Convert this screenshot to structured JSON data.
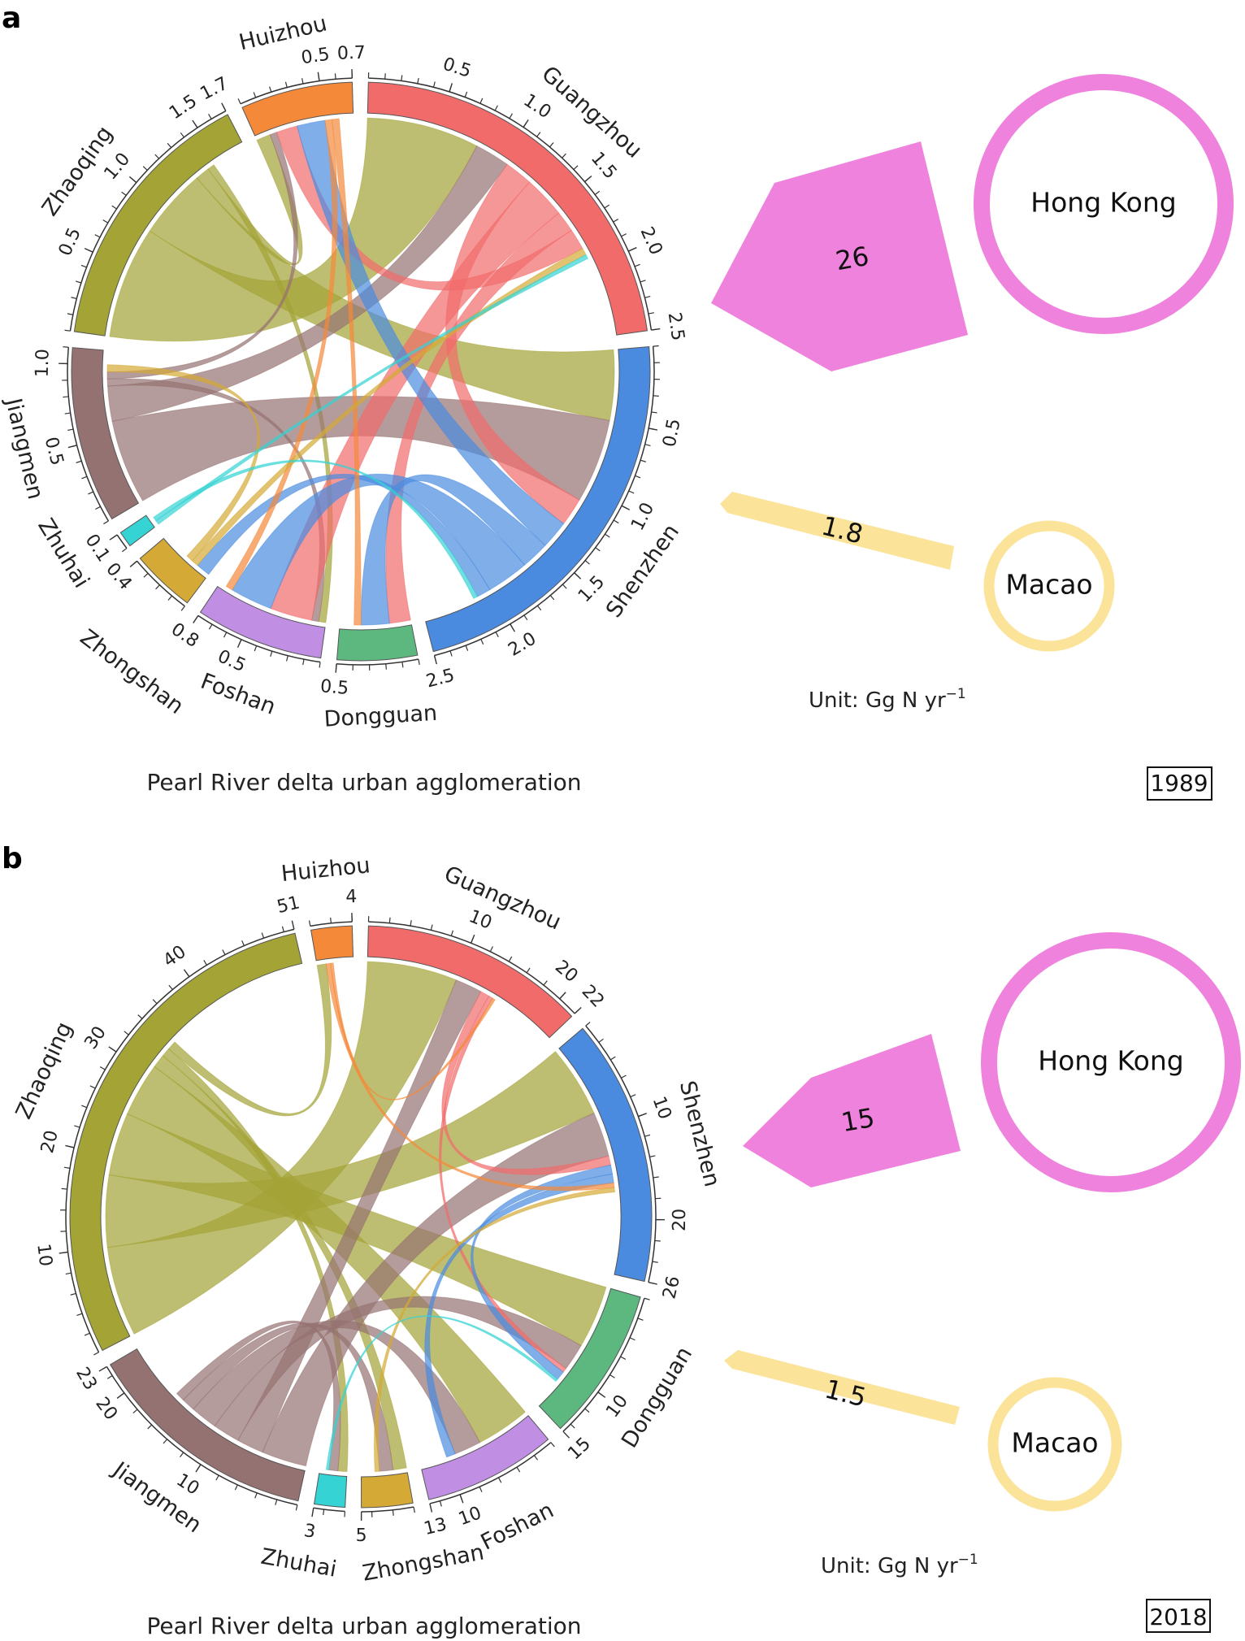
{
  "colors": {
    "Guangzhou": "#f26b6b",
    "Shenzhen": "#4a8be0",
    "Dongguan": "#5cb87f",
    "Foshan": "#c08fe4",
    "Zhongshan": "#d4a935",
    "Zhuhai": "#35d3d3",
    "Jiangmen": "#957272",
    "Zhaoqing": "#a3a336",
    "Huizhou": "#f5893a",
    "Hong Kong": "#ef82dc",
    "Macao": "#fbe39a"
  },
  "chart_data": [
    {
      "type": "chord",
      "panel": "a",
      "year": "1989",
      "caption": "Pearl River delta urban agglomeration",
      "unit_prefix": "Unit: Gg N yr",
      "unit_sup": "−1",
      "segments": [
        {
          "name": "Guangzhou",
          "total": 2.5,
          "ticks": [
            0.5,
            1.0,
            1.5,
            2.0,
            2.5
          ],
          "tick_labels": [
            "0.5",
            "1.0",
            "1.5",
            "2.0",
            "2.5"
          ]
        },
        {
          "name": "Shenzhen",
          "total": 2.5,
          "ticks": [
            0.5,
            1.0,
            1.5,
            2.0,
            2.5
          ],
          "tick_labels": [
            "0.5",
            "1.0",
            "1.5",
            "2.0",
            "2.5"
          ]
        },
        {
          "name": "Dongguan",
          "total": 0.5,
          "ticks": [
            0.5
          ],
          "tick_labels": [
            "0.5"
          ]
        },
        {
          "name": "Foshan",
          "total": 0.8,
          "ticks": [
            0.5,
            0.8
          ],
          "tick_labels": [
            "0.5",
            "0.8"
          ]
        },
        {
          "name": "Zhongshan",
          "total": 0.4,
          "ticks": [
            0.4
          ],
          "tick_labels": [
            "0.4"
          ]
        },
        {
          "name": "Zhuhai",
          "total": 0.1,
          "ticks": [
            0.1
          ],
          "tick_labels": [
            "0.1"
          ]
        },
        {
          "name": "Jiangmen",
          "total": 1.1,
          "ticks": [
            0.5,
            1.0
          ],
          "tick_labels": [
            "0.5",
            "1.0"
          ]
        },
        {
          "name": "Zhaoqing",
          "total": 1.7,
          "ticks": [
            0.5,
            1.0,
            1.5,
            1.7
          ],
          "tick_labels": [
            "0.5",
            "1.0",
            "1.5",
            "1.7"
          ]
        },
        {
          "name": "Huizhou",
          "total": 0.7,
          "ticks": [
            0.5,
            0.7
          ],
          "tick_labels": [
            "0.5",
            "0.7"
          ]
        }
      ],
      "tick_step": 0.1,
      "flows": [
        [
          "Zhaoqing",
          "Guangzhou",
          0.8
        ],
        [
          "Zhaoqing",
          "Shenzhen",
          0.5
        ],
        [
          "Zhaoqing",
          "Huizhou",
          0.1
        ],
        [
          "Zhaoqing",
          "Foshan",
          0.05
        ],
        [
          "Jiangmen",
          "Shenzhen",
          0.6
        ],
        [
          "Jiangmen",
          "Guangzhou",
          0.25
        ],
        [
          "Jiangmen",
          "Foshan",
          0.05
        ],
        [
          "Jiangmen",
          "Huizhou",
          0.05
        ],
        [
          "Guangzhou",
          "Shenzhen",
          0.2
        ],
        [
          "Guangzhou",
          "Foshan",
          0.3
        ],
        [
          "Guangzhou",
          "Dongguan",
          0.15
        ],
        [
          "Guangzhou",
          "Huizhou",
          0.15
        ],
        [
          "Shenzhen",
          "Huizhou",
          0.2
        ],
        [
          "Shenzhen",
          "Dongguan",
          0.2
        ],
        [
          "Shenzhen",
          "Foshan",
          0.3
        ],
        [
          "Shenzhen",
          "Zhongshan",
          0.1
        ],
        [
          "Huizhou",
          "Foshan",
          0.05
        ],
        [
          "Huizhou",
          "Dongguan",
          0.05
        ],
        [
          "Zhongshan",
          "Guangzhou",
          0.05
        ],
        [
          "Zhongshan",
          "Jiangmen",
          0.05
        ],
        [
          "Zhuhai",
          "Guangzhou",
          0.03
        ],
        [
          "Zhuhai",
          "Shenzhen",
          0.03
        ]
      ],
      "exports": [
        {
          "to": "Hong Kong",
          "value": "26",
          "shape": "pentagon"
        },
        {
          "to": "Macao",
          "value": "1.8",
          "shape": "arrow"
        }
      ]
    },
    {
      "type": "chord",
      "panel": "b",
      "year": "2018",
      "caption": "Pearl River delta urban agglomeration",
      "unit_prefix": "Unit: Gg N yr",
      "unit_sup": "−1",
      "segments": [
        {
          "name": "Guangzhou",
          "total": 22,
          "ticks": [
            10,
            20,
            22
          ],
          "tick_labels": [
            "10",
            "20",
            "22"
          ]
        },
        {
          "name": "Shenzhen",
          "total": 26,
          "ticks": [
            10,
            20,
            26
          ],
          "tick_labels": [
            "10",
            "20",
            "26"
          ]
        },
        {
          "name": "Dongguan",
          "total": 15,
          "ticks": [
            10,
            15
          ],
          "tick_labels": [
            "10",
            "15"
          ]
        },
        {
          "name": "Foshan",
          "total": 13,
          "ticks": [
            10,
            13
          ],
          "tick_labels": [
            "10",
            "13"
          ]
        },
        {
          "name": "Zhongshan",
          "total": 5,
          "ticks": [
            5
          ],
          "tick_labels": [
            "5"
          ]
        },
        {
          "name": "Zhuhai",
          "total": 3,
          "ticks": [
            3
          ],
          "tick_labels": [
            "3"
          ]
        },
        {
          "name": "Jiangmen",
          "total": 23,
          "ticks": [
            10,
            20,
            23
          ],
          "tick_labels": [
            "10",
            "20",
            "23"
          ]
        },
        {
          "name": "Zhaoqing",
          "total": 51,
          "ticks": [
            10,
            20,
            30,
            40,
            51
          ],
          "tick_labels": [
            "10",
            "20",
            "30",
            "40",
            "51"
          ]
        },
        {
          "name": "Huizhou",
          "total": 4,
          "ticks": [
            4
          ],
          "tick_labels": [
            "4"
          ]
        }
      ],
      "tick_step": 2,
      "flows": [
        [
          "Zhaoqing",
          "Guangzhou",
          10
        ],
        [
          "Zhaoqing",
          "Shenzhen",
          8
        ],
        [
          "Zhaoqing",
          "Dongguan",
          7
        ],
        [
          "Zhaoqing",
          "Foshan",
          6
        ],
        [
          "Zhaoqing",
          "Zhongshan",
          1.5
        ],
        [
          "Zhaoqing",
          "Zhuhai",
          1
        ],
        [
          "Zhaoqing",
          "Huizhou",
          1
        ],
        [
          "Jiangmen",
          "Shenzhen",
          5
        ],
        [
          "Jiangmen",
          "Guangzhou",
          3
        ],
        [
          "Jiangmen",
          "Dongguan",
          3
        ],
        [
          "Jiangmen",
          "Foshan",
          3
        ],
        [
          "Jiangmen",
          "Zhongshan",
          1.5
        ],
        [
          "Jiangmen",
          "Zhuhai",
          1
        ],
        [
          "Guangzhou",
          "Shenzhen",
          1
        ],
        [
          "Guangzhou",
          "Dongguan",
          0.5
        ],
        [
          "Shenzhen",
          "Dongguan",
          1
        ],
        [
          "Shenzhen",
          "Foshan",
          1
        ],
        [
          "Huizhou",
          "Shenzhen",
          0.5
        ],
        [
          "Huizhou",
          "Guangzhou",
          0.3
        ],
        [
          "Zhongshan",
          "Shenzhen",
          0.5
        ],
        [
          "Zhuhai",
          "Dongguan",
          0.3
        ]
      ],
      "exports": [
        {
          "to": "Hong Kong",
          "value": "15",
          "shape": "pentagon"
        },
        {
          "to": "Macao",
          "value": "1.5",
          "shape": "arrow"
        }
      ]
    }
  ],
  "labels": {
    "panel_a": "a",
    "panel_b": "b"
  }
}
